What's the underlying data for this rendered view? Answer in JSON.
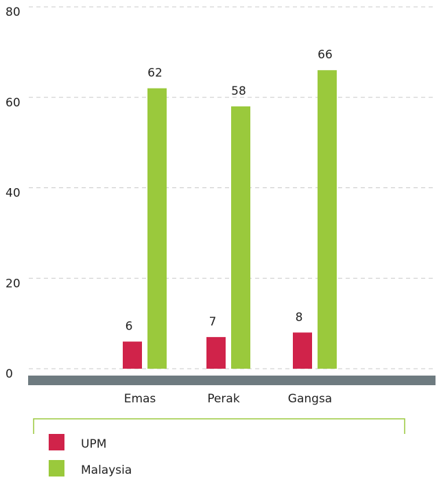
{
  "chart_data": {
    "type": "bar",
    "categories": [
      "Emas",
      "Perak",
      "Gangsa"
    ],
    "series": [
      {
        "name": "UPM",
        "color": "#d0234a",
        "values": [
          6,
          7,
          8
        ]
      },
      {
        "name": "Malaysia",
        "color": "#9ac93c",
        "values": [
          62,
          58,
          66
        ]
      }
    ],
    "ylim": [
      0,
      80
    ],
    "yticks": [
      0,
      20,
      40,
      60,
      80
    ],
    "grid": true
  }
}
